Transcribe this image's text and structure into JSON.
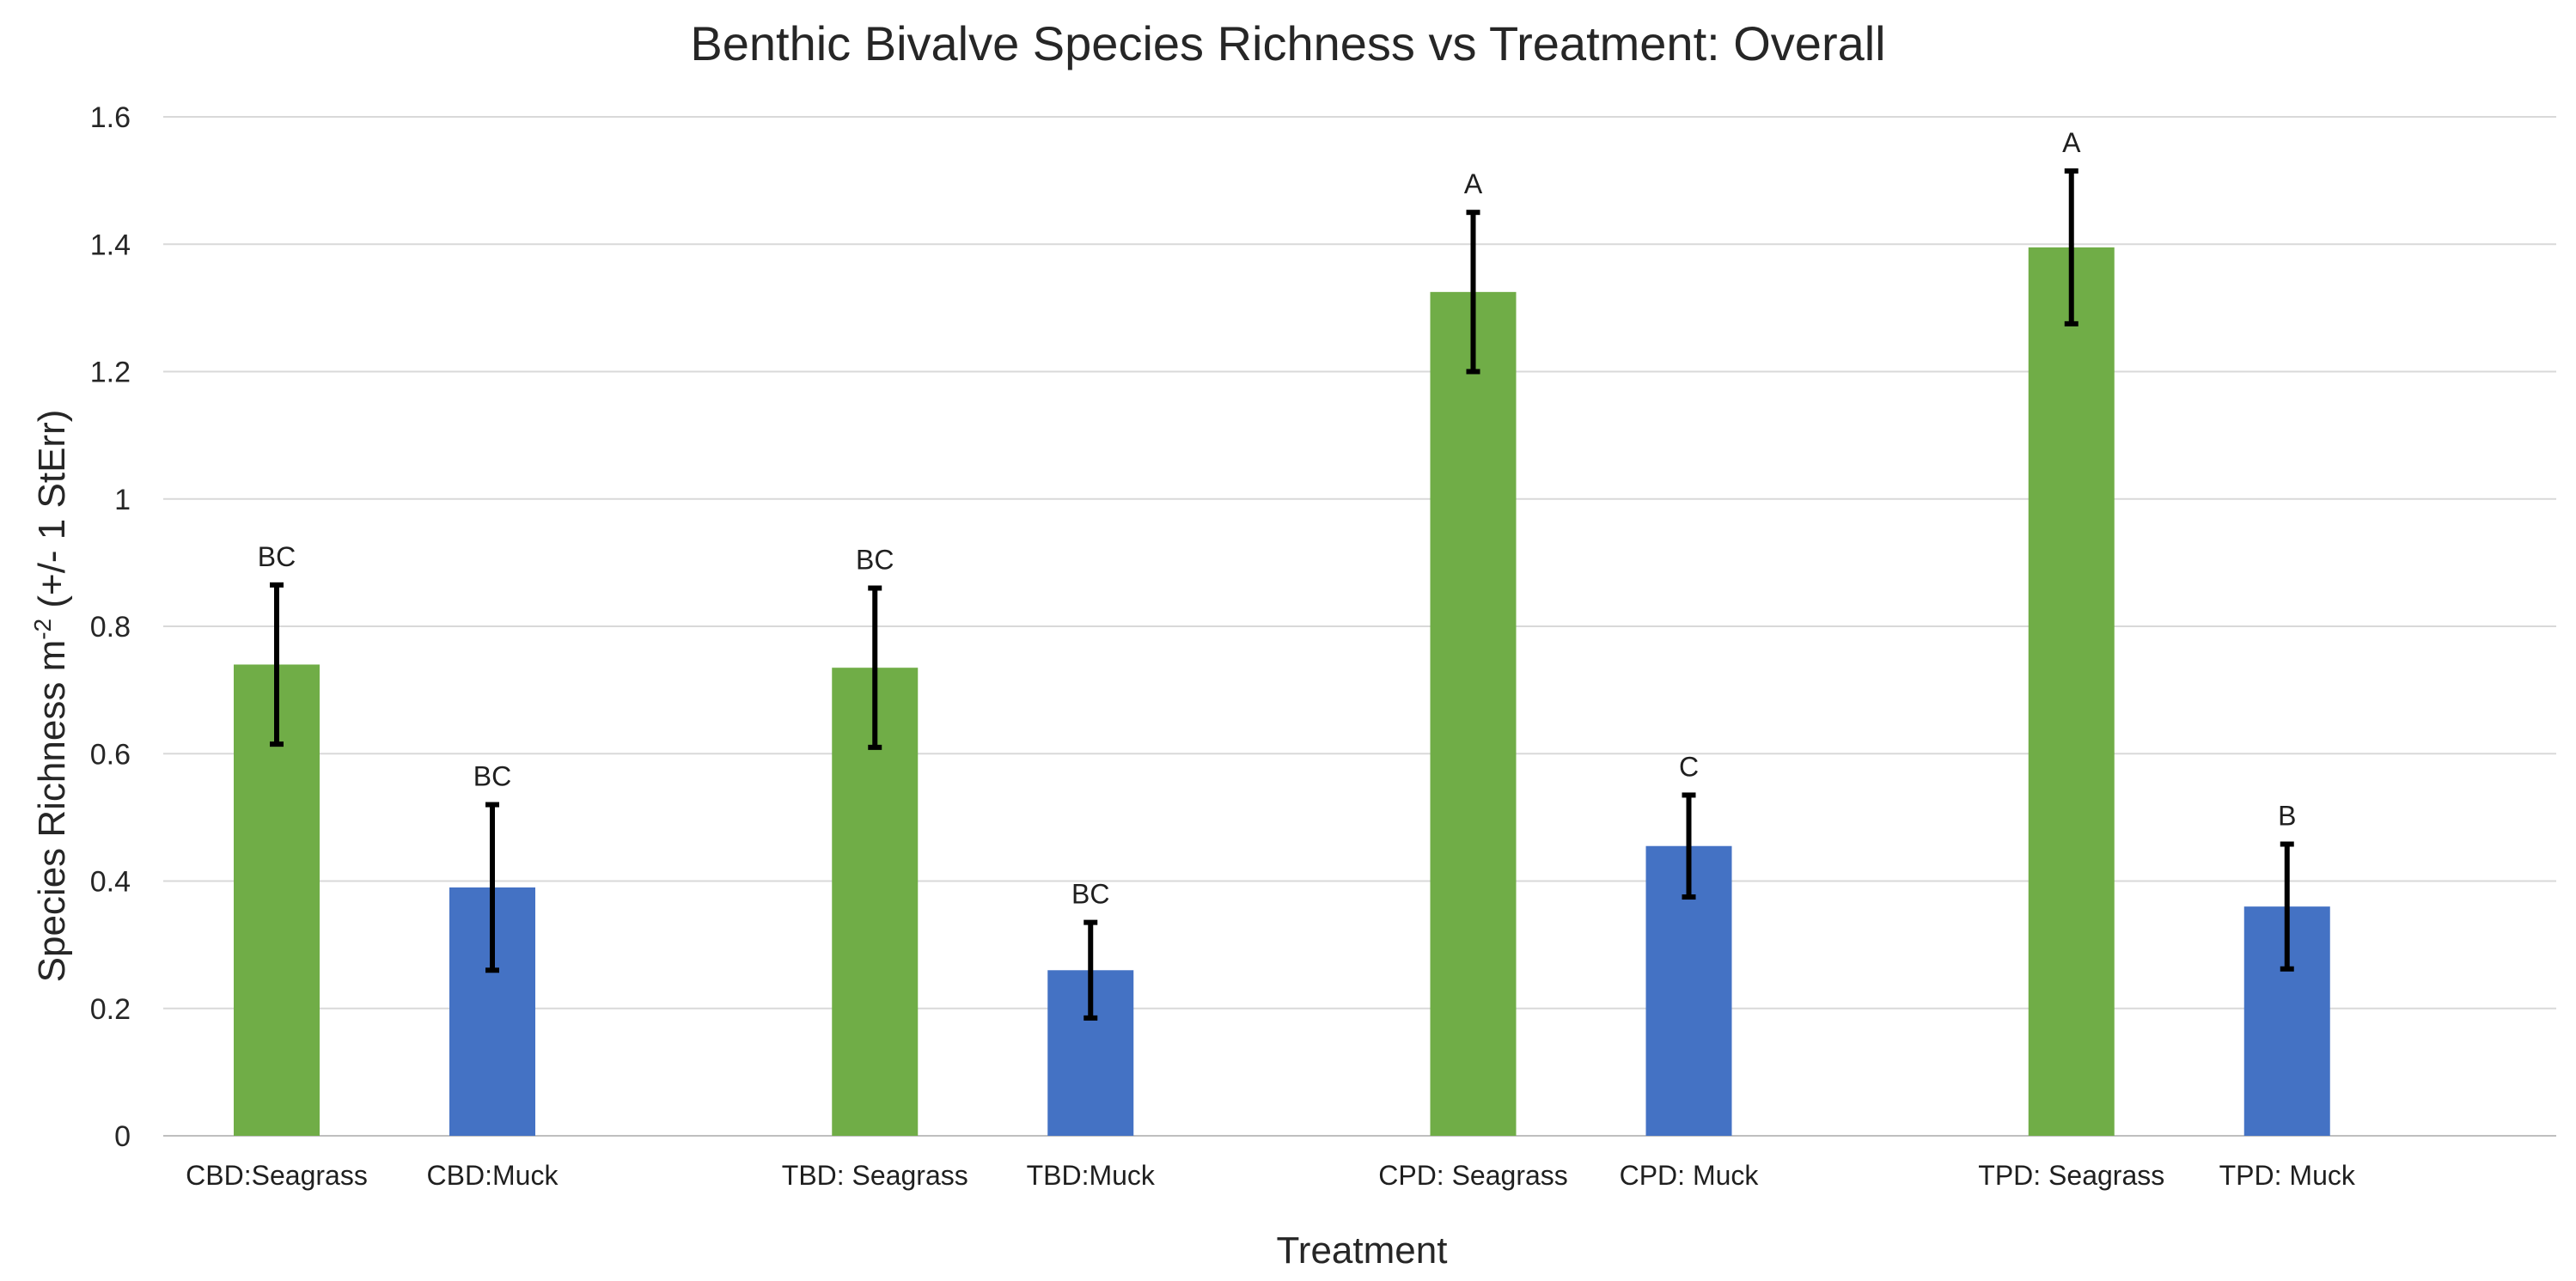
{
  "chart_data": {
    "type": "bar",
    "title": "Benthic Bivalve Species Richness vs Treatment: Overall",
    "xlabel": "Treatment",
    "ylabel_main": "Species Richness m",
    "ylabel_sup": "-2",
    "ylabel_tail": " (+/- 1 StErr)",
    "ylim": [
      0,
      1.6
    ],
    "y_ticks": [
      {
        "value": 0,
        "label": "0"
      },
      {
        "value": 0.2,
        "label": "0.2"
      },
      {
        "value": 0.4,
        "label": "0.4"
      },
      {
        "value": 0.6,
        "label": "0.6"
      },
      {
        "value": 0.8,
        "label": "0.8"
      },
      {
        "value": 1.0,
        "label": "1"
      },
      {
        "value": 1.2,
        "label": "1.2"
      },
      {
        "value": 1.4,
        "label": "1.4"
      },
      {
        "value": 1.6,
        "label": "1.6"
      }
    ],
    "grid": true,
    "legend": "none",
    "colors": {
      "seagrass": "#70ad47",
      "muck": "#4472c4",
      "error_bar": "#000000"
    },
    "bars": [
      {
        "category": "CBD:Seagrass",
        "value": 0.74,
        "err": 0.125,
        "sig": "BC",
        "kind": "seagrass"
      },
      {
        "category": "CBD:Muck",
        "value": 0.39,
        "err": 0.13,
        "sig": "BC",
        "kind": "muck"
      },
      {
        "category": "TBD: Seagrass",
        "value": 0.735,
        "err": 0.125,
        "sig": "BC",
        "kind": "seagrass"
      },
      {
        "category": "TBD:Muck",
        "value": 0.26,
        "err": 0.075,
        "sig": "BC",
        "kind": "muck"
      },
      {
        "category": "CPD: Seagrass",
        "value": 1.325,
        "err": 0.125,
        "sig": "A",
        "kind": "seagrass"
      },
      {
        "category": "CPD: Muck",
        "value": 0.455,
        "err": 0.08,
        "sig": "C",
        "kind": "muck"
      },
      {
        "category": "TPD: Seagrass",
        "value": 1.395,
        "err": 0.12,
        "sig": "A",
        "kind": "seagrass"
      },
      {
        "category": "TPD: Muck",
        "value": 0.36,
        "err": 0.098,
        "sig": "B",
        "kind": "muck"
      }
    ]
  }
}
